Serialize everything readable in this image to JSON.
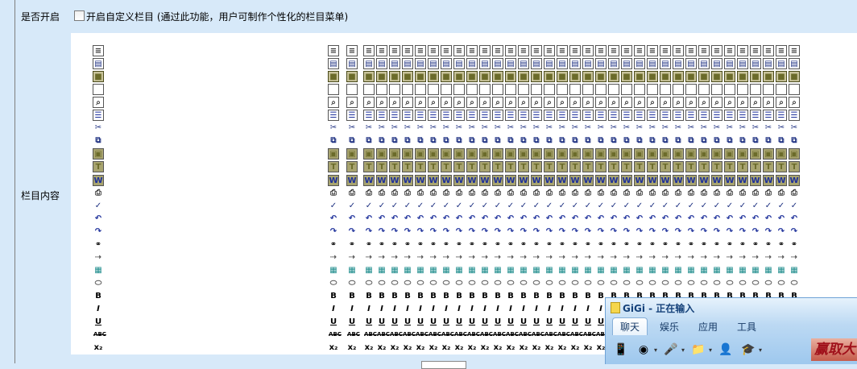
{
  "form": {
    "enable_label": "是否开启",
    "enable_checkbox_text": "开启自定义栏目 (通过此功能，用户可制作个性化的栏目菜单)",
    "enable_checked": false,
    "content_label": "栏目内容"
  },
  "toolbar_icon_rows": [
    {
      "name": "source-icon",
      "glyph": "≡",
      "color": "#333"
    },
    {
      "name": "templates-icon",
      "glyph": "▤",
      "color": "#1c2f80"
    },
    {
      "name": "save-icon",
      "glyph": "■",
      "color": "#6b6b2a"
    },
    {
      "name": "new-page-icon",
      "glyph": "",
      "color": "#333"
    },
    {
      "name": "preview-icon",
      "glyph": "⌕",
      "color": "#333"
    },
    {
      "name": "document-icon",
      "glyph": "☰",
      "color": "#1c2f9a"
    },
    {
      "name": "cut-icon",
      "glyph": "✂",
      "color": "#1c2f80"
    },
    {
      "name": "copy-icon",
      "glyph": "⧉",
      "color": "#1c2f80"
    },
    {
      "name": "paste-icon",
      "glyph": "▣",
      "color": "#6b6b2a"
    },
    {
      "name": "paste-text-icon",
      "glyph": "T",
      "color": "#6b6b2a"
    },
    {
      "name": "paste-word-icon",
      "glyph": "W",
      "color": "#1c2f9a"
    },
    {
      "name": "print-icon",
      "glyph": "⎙",
      "color": "#333"
    },
    {
      "name": "spellcheck-icon",
      "glyph": "✓",
      "color": "#1c2f80"
    },
    {
      "name": "undo-icon",
      "glyph": "↶",
      "color": "#1c2f9a"
    },
    {
      "name": "redo-icon",
      "glyph": "↷",
      "color": "#1c2f9a"
    },
    {
      "name": "find-icon",
      "glyph": "⚭",
      "color": "#000"
    },
    {
      "name": "replace-icon",
      "glyph": "⇢",
      "color": "#555"
    },
    {
      "name": "select-all-icon",
      "glyph": "▦",
      "color": "#1a8a8a"
    },
    {
      "name": "remove-format-icon",
      "glyph": "⬭",
      "color": "#555"
    },
    {
      "name": "bold-icon",
      "glyph": "B",
      "color": "#000"
    },
    {
      "name": "italic-icon",
      "glyph": "I",
      "color": "#000"
    },
    {
      "name": "underline-icon",
      "glyph": "U",
      "color": "#000"
    },
    {
      "name": "strikethrough-icon",
      "glyph": "ABC",
      "color": "#000"
    },
    {
      "name": "subscript-icon",
      "glyph": "x₂",
      "color": "#000"
    }
  ],
  "popup": {
    "title": "GiGi - 正在输入",
    "tabs": [
      {
        "label": "聊天",
        "active": true
      },
      {
        "label": "娱乐",
        "active": false
      },
      {
        "label": "应用",
        "active": false
      },
      {
        "label": "工具",
        "active": false
      }
    ],
    "tools": [
      {
        "name": "phone-sms-icon",
        "glyph": "📱",
        "dropdown": false
      },
      {
        "name": "webcam-icon",
        "glyph": "◉",
        "dropdown": true
      },
      {
        "name": "microphone-icon",
        "glyph": "🎤",
        "dropdown": true
      },
      {
        "name": "file-transfer-icon",
        "glyph": "📁",
        "dropdown": true
      },
      {
        "name": "add-contact-icon",
        "glyph": "👤",
        "dropdown": false
      },
      {
        "name": "police-icon",
        "glyph": "🎓",
        "dropdown": true
      }
    ],
    "ad_text": "赢取大"
  }
}
